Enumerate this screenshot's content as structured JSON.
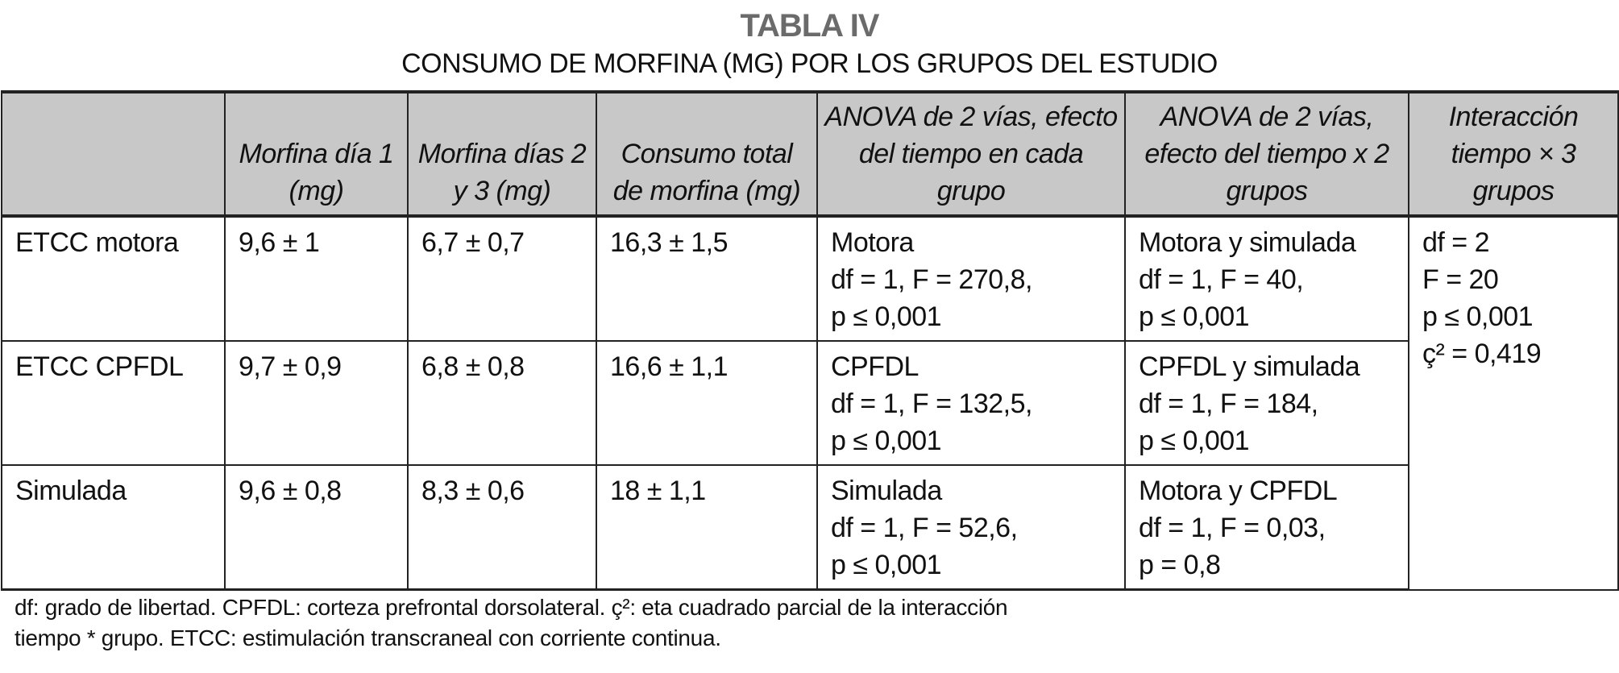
{
  "table_label": "TABLA IV",
  "caption": "CONSUMO DE MORFINA (MG) POR LOS GRUPOS DEL ESTUDIO",
  "headers": [
    "",
    "Morfina día 1 (mg)",
    "Morfina días 2 y 3 (mg)",
    "Consumo total de morfina (mg)",
    "ANOVA de 2 vías, efecto del tiempo en cada grupo",
    "ANOVA de 2 vías, efecto del tiempo x 2 grupos",
    "Interacción tiempo × 3 grupos"
  ],
  "rows": [
    {
      "group": "ETCC motora",
      "day1": "9,6 ± 1",
      "day23": "6,7 ± 0,7",
      "total": "16,3 ± 1,5",
      "anova_group": "Motora\ndf = 1, F = 270,8,\np ≤ 0,001",
      "anova_pair": "Motora y simulada\ndf = 1, F = 40,\np ≤ 0,001"
    },
    {
      "group": "ETCC CPFDL",
      "day1": "9,7 ± 0,9",
      "day23": "6,8 ± 0,8",
      "total": "16,6 ± 1,1",
      "anova_group": "CPFDL\ndf = 1, F = 132,5,\np ≤ 0,001",
      "anova_pair": "CPFDL y simulada\ndf = 1, F = 184,\np ≤ 0,001"
    },
    {
      "group": "Simulada",
      "day1": "9,6 ± 0,8",
      "day23": "8,3 ± 0,6",
      "total": "18 ± 1,1",
      "anova_group": "Simulada\ndf = 1, F = 52,6,\np ≤ 0,001",
      "anova_pair": "Motora y CPFDL\ndf = 1, F = 0,03,\np = 0,8"
    }
  ],
  "interaction": "df = 2\nF = 20\np ≤ 0,001\nç² = 0,419",
  "footnote": "df: grado de libertad. CPFDL: corteza prefrontal dorsolateral. ç²: eta cuadrado parcial de la interacción\ntiempo * grupo. ETCC: estimulación transcraneal con corriente continua."
}
